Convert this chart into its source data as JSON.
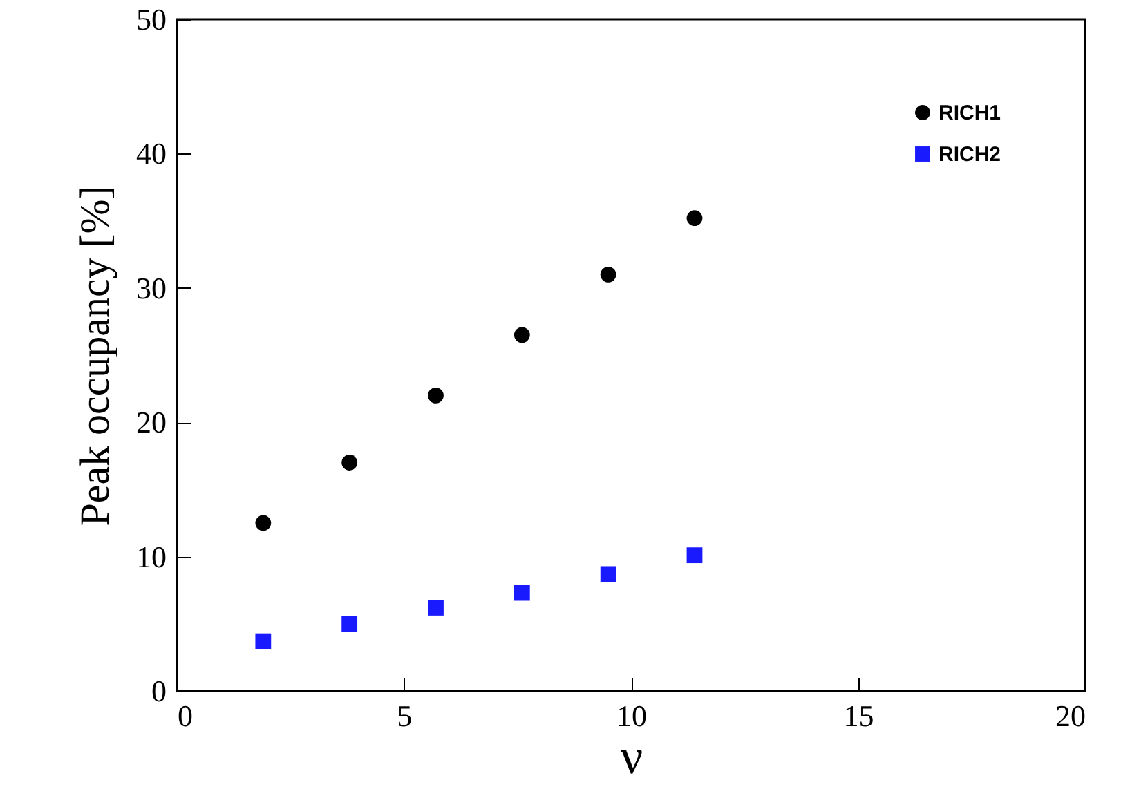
{
  "chart_data": {
    "type": "scatter",
    "xlabel": "ν",
    "ylabel": "Peak occupancy [%]",
    "x": [
      1.9,
      3.8,
      5.7,
      7.6,
      9.5,
      11.4
    ],
    "series": [
      {
        "name": "RICH1",
        "color": "#000000",
        "marker": "circle",
        "values": [
          12.5,
          17,
          22,
          26.5,
          31,
          35.2
        ]
      },
      {
        "name": "RICH2",
        "color": "#1a1aff",
        "marker": "square",
        "values": [
          3.7,
          5,
          6.2,
          7.3,
          8.7,
          10.1
        ]
      }
    ],
    "xlim": [
      0,
      20
    ],
    "xticks": [
      0,
      5,
      10,
      15,
      20
    ],
    "ylim": [
      0,
      50
    ],
    "yticks": [
      0,
      10,
      20,
      30,
      40,
      50
    ],
    "grid": false,
    "legend": "top right"
  }
}
